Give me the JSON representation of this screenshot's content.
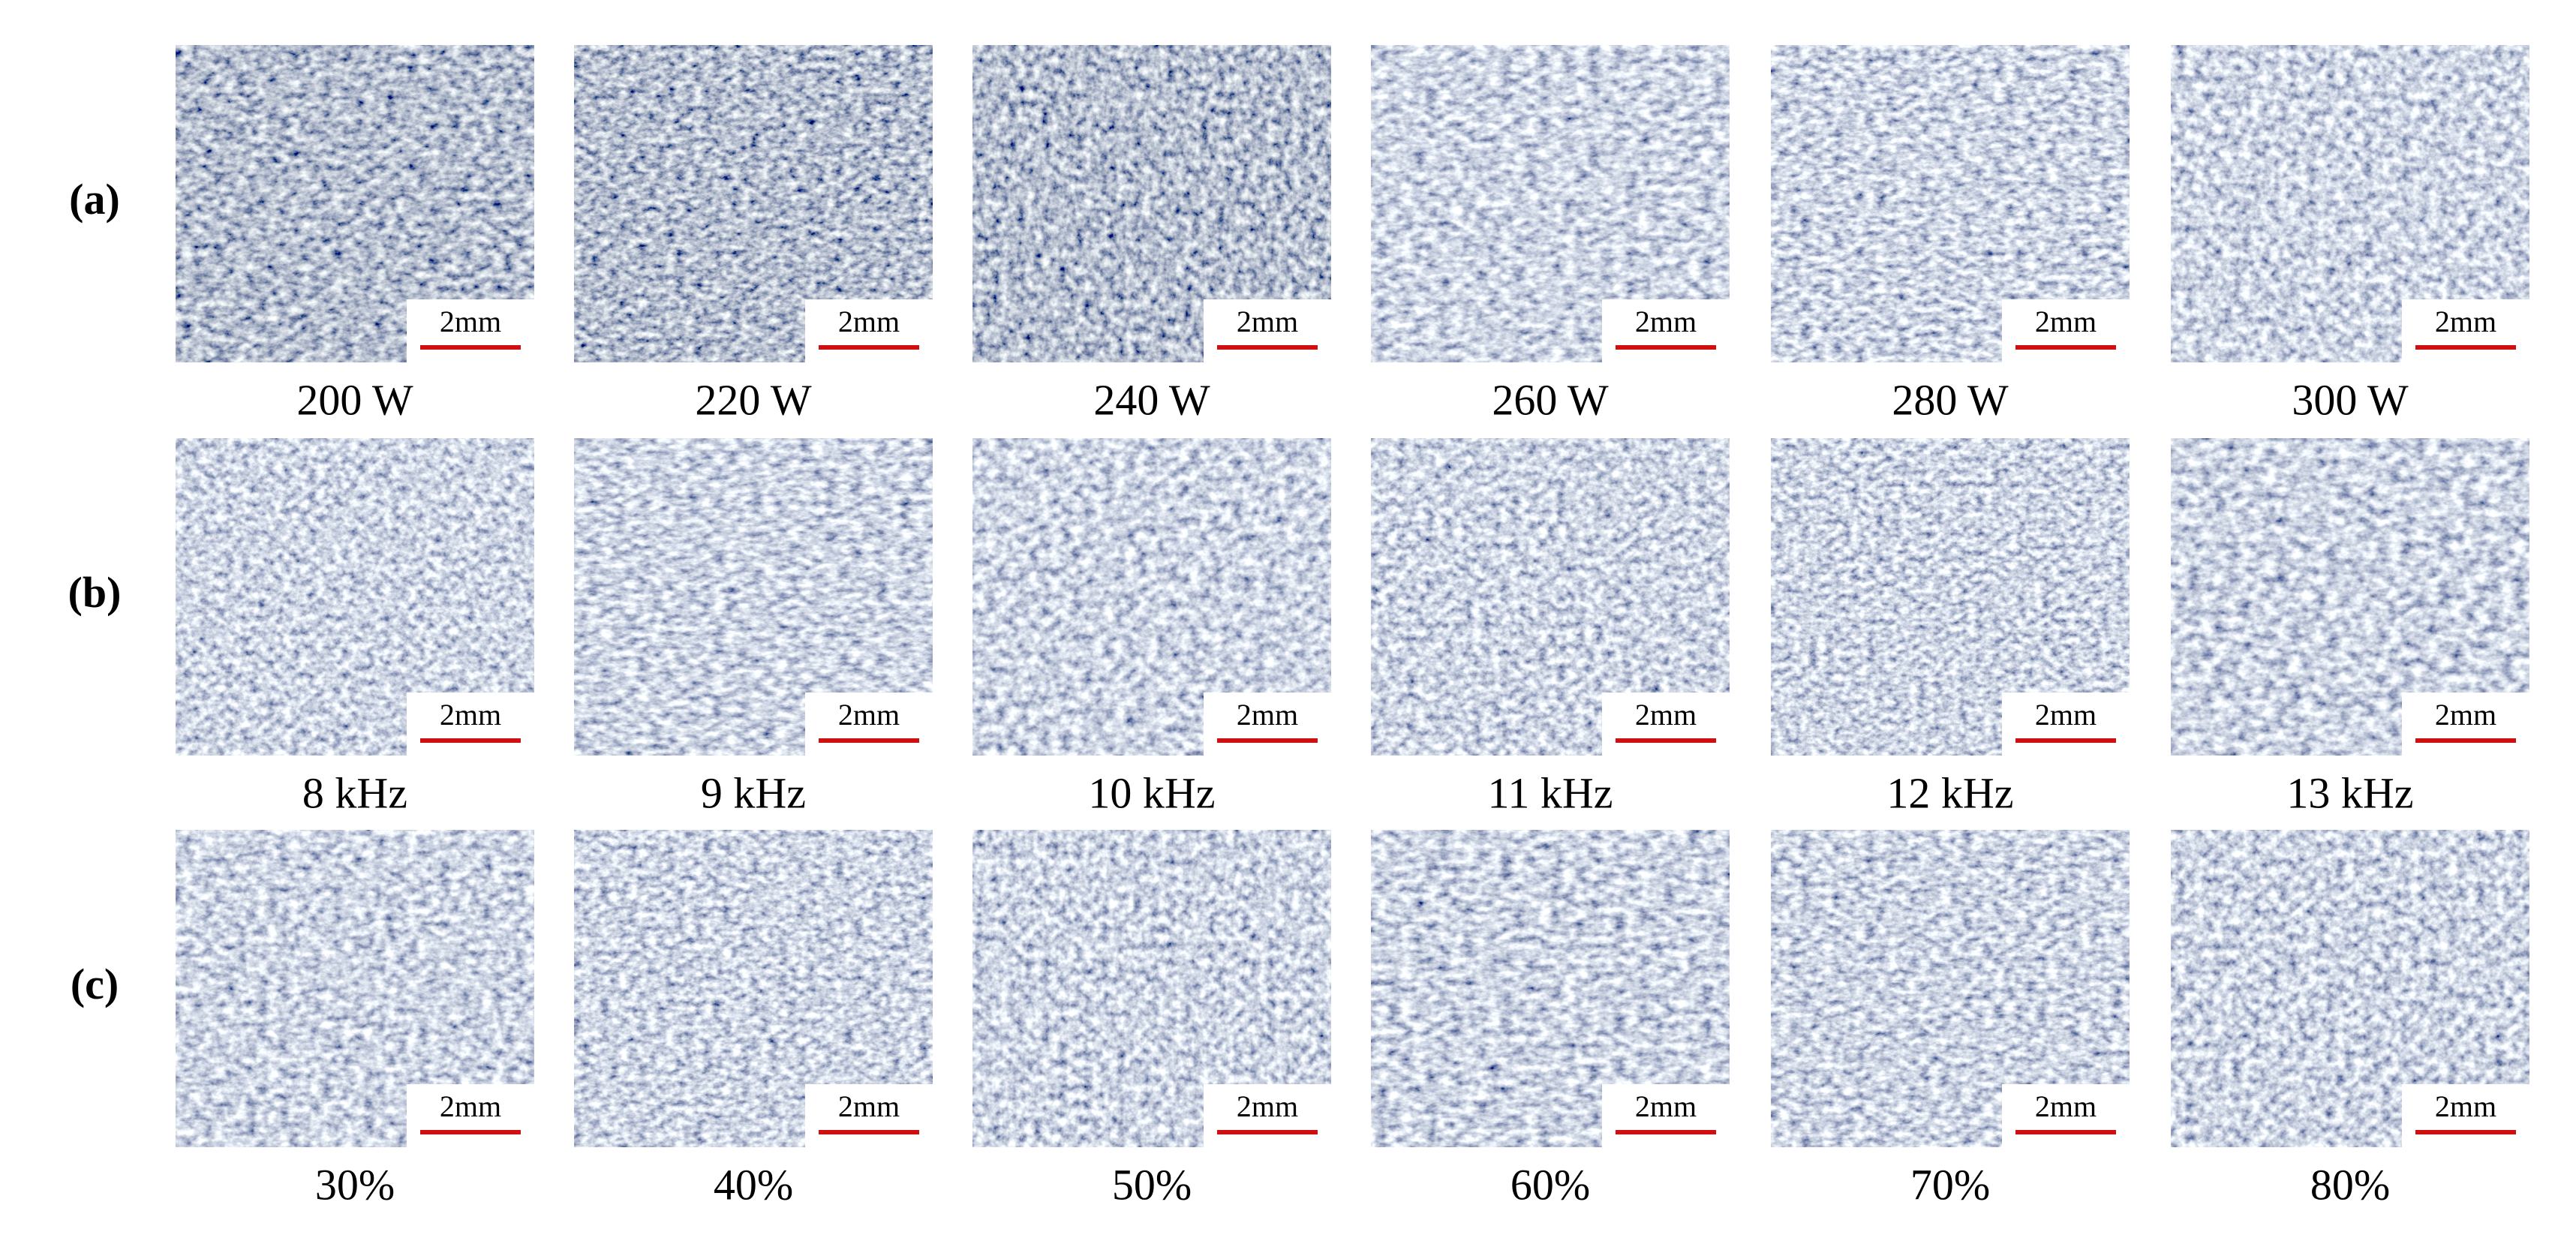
{
  "rows": [
    {
      "label": "(a)",
      "panels": [
        {
          "caption": "200 W",
          "scale_bar": "2mm"
        },
        {
          "caption": "220 W",
          "scale_bar": "2mm"
        },
        {
          "caption": "240 W",
          "scale_bar": "2mm"
        },
        {
          "caption": "260 W",
          "scale_bar": "2mm"
        },
        {
          "caption": "280 W",
          "scale_bar": "2mm"
        },
        {
          "caption": "300 W",
          "scale_bar": "2mm"
        }
      ]
    },
    {
      "label": "(b)",
      "panels": [
        {
          "caption": "8 kHz",
          "scale_bar": "2mm"
        },
        {
          "caption": "9 kHz",
          "scale_bar": "2mm"
        },
        {
          "caption": "10 kHz",
          "scale_bar": "2mm"
        },
        {
          "caption": "11 kHz",
          "scale_bar": "2mm"
        },
        {
          "caption": "12 kHz",
          "scale_bar": "2mm"
        },
        {
          "caption": "13 kHz",
          "scale_bar": "2mm"
        }
      ]
    },
    {
      "label": "(c)",
      "panels": [
        {
          "caption": "30%",
          "scale_bar": "2mm"
        },
        {
          "caption": "40%",
          "scale_bar": "2mm"
        },
        {
          "caption": "50%",
          "scale_bar": "2mm"
        },
        {
          "caption": "60%",
          "scale_bar": "2mm"
        },
        {
          "caption": "70%",
          "scale_bar": "2mm"
        },
        {
          "caption": "80%",
          "scale_bar": "2mm"
        }
      ]
    }
  ]
}
